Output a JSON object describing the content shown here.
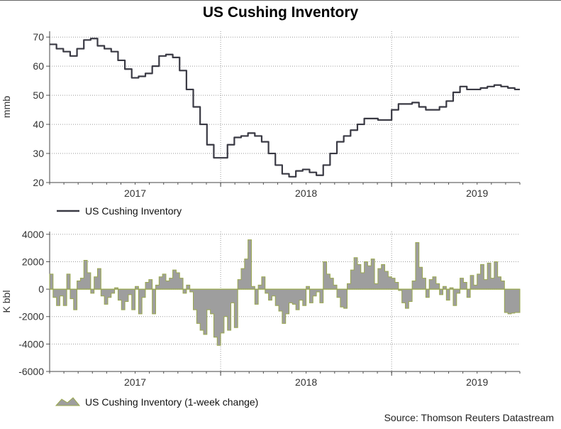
{
  "title": "US Cushing Inventory",
  "source": "Source: Thomson Reuters Datastream",
  "colors": {
    "line": "#3a3a44",
    "area_fill": "#9e9e9e",
    "area_edge": "#9aa84f",
    "grid": "#9a9a9a"
  },
  "chart_data": [
    {
      "type": "line",
      "title": "US Cushing Inventory",
      "xlabel": "",
      "ylabel": "mmb",
      "ylim": [
        20,
        72
      ],
      "yticks": [
        20,
        30,
        40,
        50,
        60,
        70
      ],
      "xlim": [
        2016.5,
        2019.25
      ],
      "xticks": [
        {
          "label": "2017",
          "pos": 2017.0
        },
        {
          "label": "2018",
          "pos": 2018.0
        },
        {
          "label": "2019",
          "pos": 2019.0
        }
      ],
      "year_boundaries": [
        2017.5,
        2018.5
      ],
      "legend": "US Cushing Inventory",
      "series": [
        {
          "name": "US Cushing Inventory",
          "x": [
            2016.5,
            2016.54,
            2016.58,
            2016.62,
            2016.66,
            2016.7,
            2016.74,
            2016.78,
            2016.82,
            2016.86,
            2016.9,
            2016.94,
            2016.98,
            2017.02,
            2017.06,
            2017.1,
            2017.14,
            2017.18,
            2017.22,
            2017.26,
            2017.3,
            2017.34,
            2017.38,
            2017.42,
            2017.46,
            2017.5,
            2017.54,
            2017.58,
            2017.62,
            2017.66,
            2017.7,
            2017.74,
            2017.78,
            2017.82,
            2017.86,
            2017.9,
            2017.94,
            2017.98,
            2018.02,
            2018.06,
            2018.1,
            2018.14,
            2018.18,
            2018.22,
            2018.26,
            2018.3,
            2018.34,
            2018.38,
            2018.42,
            2018.46,
            2018.5,
            2018.54,
            2018.58,
            2018.62,
            2018.66,
            2018.7,
            2018.74,
            2018.78,
            2018.82,
            2018.86,
            2018.9,
            2018.94,
            2018.98,
            2019.02,
            2019.06,
            2019.1,
            2019.14,
            2019.18,
            2019.22,
            2019.25
          ],
          "values": [
            67.5,
            66.0,
            65.0,
            63.5,
            66.0,
            69.0,
            69.5,
            67.0,
            66.0,
            65.0,
            62.0,
            59.0,
            56.0,
            56.5,
            57.5,
            60.0,
            63.5,
            64.0,
            63.0,
            58.5,
            52.0,
            46.0,
            40.0,
            33.0,
            28.5,
            28.5,
            33.0,
            35.5,
            36.0,
            37.0,
            36.0,
            34.0,
            30.0,
            26.0,
            23.0,
            22.0,
            24.0,
            24.5,
            23.5,
            22.5,
            26.0,
            30.0,
            34.0,
            36.0,
            38.0,
            40.0,
            42.0,
            42.0,
            41.5,
            41.5,
            45.0,
            47.0,
            47.0,
            47.5,
            46.0,
            45.0,
            45.0,
            46.0,
            48.0,
            51.0,
            53.0,
            52.0,
            52.0,
            52.5,
            53.0,
            53.5,
            53.0,
            52.5,
            52.0,
            52.0
          ]
        }
      ]
    },
    {
      "type": "area",
      "title": "",
      "xlabel": "",
      "ylabel": "K bbl",
      "ylim": [
        -6000,
        4200
      ],
      "yticks": [
        -6000,
        -4000,
        -2000,
        0,
        2000,
        4000
      ],
      "xlim": [
        2016.5,
        2019.25
      ],
      "xticks": [
        {
          "label": "2017",
          "pos": 2017.0
        },
        {
          "label": "2018",
          "pos": 2018.0
        },
        {
          "label": "2019",
          "pos": 2019.0
        }
      ],
      "year_boundaries": [
        2017.5,
        2018.5
      ],
      "legend": "US Cushing Inventory (1-week change)",
      "series": [
        {
          "name": "US Cushing Inventory (1-week change)",
          "x": [
            2016.5,
            2016.52,
            2016.54,
            2016.56,
            2016.58,
            2016.6,
            2016.62,
            2016.64,
            2016.66,
            2016.68,
            2016.7,
            2016.72,
            2016.74,
            2016.76,
            2016.78,
            2016.8,
            2016.82,
            2016.84,
            2016.86,
            2016.88,
            2016.9,
            2016.92,
            2016.94,
            2016.96,
            2016.98,
            2017.0,
            2017.02,
            2017.04,
            2017.06,
            2017.08,
            2017.1,
            2017.12,
            2017.14,
            2017.16,
            2017.18,
            2017.2,
            2017.22,
            2017.24,
            2017.26,
            2017.28,
            2017.3,
            2017.32,
            2017.34,
            2017.36,
            2017.38,
            2017.4,
            2017.42,
            2017.44,
            2017.46,
            2017.48,
            2017.5,
            2017.52,
            2017.54,
            2017.56,
            2017.58,
            2017.6,
            2017.62,
            2017.64,
            2017.66,
            2017.68,
            2017.7,
            2017.72,
            2017.74,
            2017.76,
            2017.78,
            2017.8,
            2017.82,
            2017.84,
            2017.86,
            2017.88,
            2017.9,
            2017.92,
            2017.94,
            2017.96,
            2017.98,
            2018.0,
            2018.02,
            2018.04,
            2018.06,
            2018.08,
            2018.1,
            2018.12,
            2018.14,
            2018.16,
            2018.18,
            2018.2,
            2018.22,
            2018.24,
            2018.26,
            2018.28,
            2018.3,
            2018.32,
            2018.34,
            2018.36,
            2018.38,
            2018.4,
            2018.42,
            2018.44,
            2018.46,
            2018.48,
            2018.5,
            2018.52,
            2018.54,
            2018.56,
            2018.58,
            2018.6,
            2018.62,
            2018.64,
            2018.66,
            2018.68,
            2018.7,
            2018.72,
            2018.74,
            2018.76,
            2018.78,
            2018.8,
            2018.82,
            2018.84,
            2018.86,
            2018.88,
            2018.9,
            2018.92,
            2018.94,
            2018.96,
            2018.98,
            2019.0,
            2019.02,
            2019.04,
            2019.06,
            2019.08,
            2019.1,
            2019.12,
            2019.14,
            2019.16,
            2019.18,
            2019.2,
            2019.22,
            2019.24,
            2019.25
          ],
          "values": [
            1100,
            -600,
            -1200,
            -500,
            -1200,
            1100,
            -700,
            -1500,
            600,
            800,
            2100,
            1200,
            -300,
            900,
            1500,
            -500,
            -1100,
            -600,
            -300,
            100,
            -800,
            -1500,
            -900,
            -400,
            -1500,
            200,
            -1800,
            -600,
            500,
            700,
            -1800,
            300,
            900,
            1100,
            600,
            800,
            1400,
            1200,
            800,
            -300,
            300,
            -200,
            -1500,
            -2500,
            -3000,
            -3300,
            -1500,
            -1800,
            -3500,
            -4100,
            -3200,
            -2000,
            -3000,
            -1000,
            -2800,
            700,
            1500,
            2200,
            3600,
            200,
            -1100,
            300,
            900,
            -300,
            -800,
            -500,
            -1200,
            -1600,
            -2500,
            -1800,
            -1000,
            -1100,
            -1500,
            -800,
            -1200,
            200,
            -1000,
            -500,
            -200,
            -1000,
            2000,
            1100,
            800,
            300,
            -600,
            -1300,
            -1400,
            400,
            1400,
            2300,
            1800,
            1200,
            2000,
            1700,
            2200,
            400,
            1500,
            1800,
            1300,
            900,
            800,
            500,
            -100,
            -1000,
            -1400,
            -900,
            600,
            3400,
            1600,
            800,
            -600,
            700,
            900,
            400,
            -400,
            200,
            -800,
            100,
            -1200,
            -300,
            800,
            500,
            -600,
            1000,
            300,
            1100,
            1800,
            700,
            1900,
            800,
            2000,
            900,
            600,
            -1700,
            -1800,
            -1750,
            -1700,
            -1700,
            -1700
          ]
        }
      ]
    }
  ]
}
